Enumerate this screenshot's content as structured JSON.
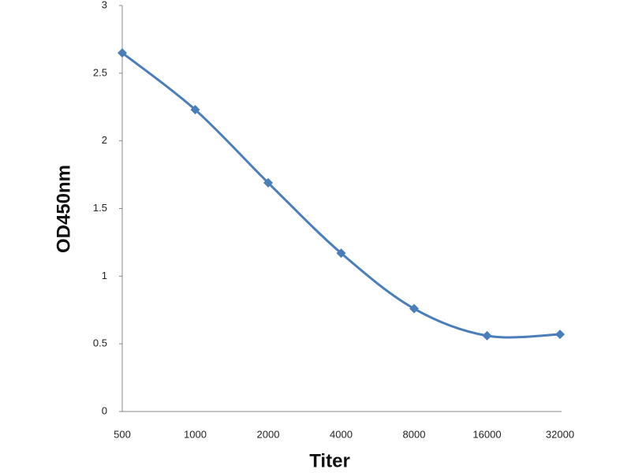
{
  "chart_data": {
    "type": "line",
    "x_label": "Titer",
    "y_label": "OD450nm",
    "categories": [
      "500",
      "1000",
      "2000",
      "4000",
      "8000",
      "16000",
      "32000"
    ],
    "series": [
      {
        "name": "OD450nm",
        "color": "#4a7ebb",
        "values": [
          2.65,
          2.23,
          1.69,
          1.17,
          0.76,
          0.56,
          0.57
        ]
      }
    ],
    "ylim": [
      0,
      3
    ],
    "yticks": [
      0,
      0.5,
      1,
      1.5,
      2,
      2.5,
      3
    ],
    "grid": false,
    "smooth": true,
    "marker": "diamond"
  }
}
